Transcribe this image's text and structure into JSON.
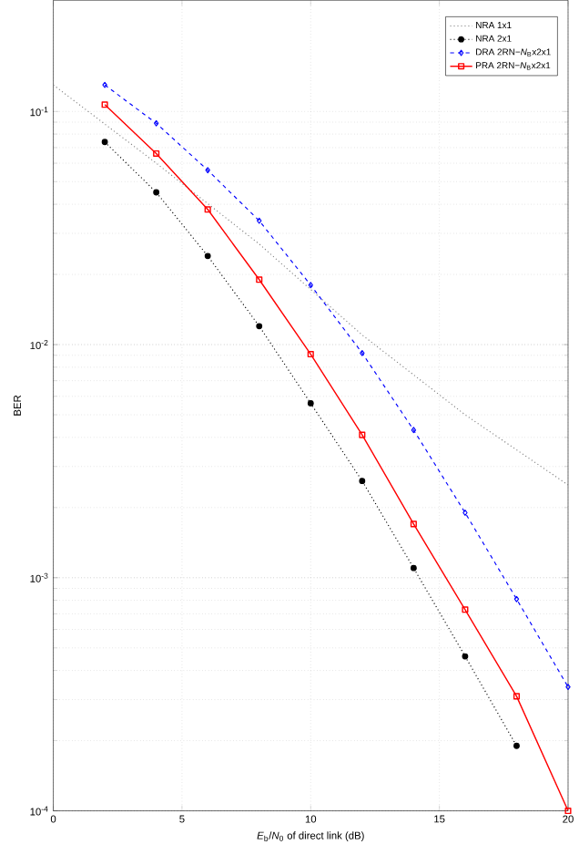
{
  "chart_data": {
    "type": "line",
    "xlabel": "*E*$_{b}$/*N*$_{0}$ of direct link (dB)",
    "ylabel": "BER",
    "log": "y",
    "grid": true,
    "legend": "top right",
    "xlim": [
      0,
      20
    ],
    "xticks": [
      0,
      5,
      10,
      15,
      20
    ],
    "ylim": [
      0.0001,
      0.3
    ],
    "yticks": [
      {
        "value": 0.0001,
        "label": "10$^{-4}$"
      },
      {
        "value": 0.001,
        "label": "10$^{-3}$"
      },
      {
        "value": 0.01,
        "label": "10$^{-2}$"
      },
      {
        "value": 0.1,
        "label": "10$^{-1}$"
      }
    ],
    "series": [
      {
        "name": "NRA 1x1",
        "color": "#808080",
        "marker": "none",
        "line_style": "dotted",
        "x": [
          0,
          4,
          8,
          12,
          16,
          20
        ],
        "values": [
          0.13,
          0.06,
          0.027,
          0.011,
          0.005,
          0.0025
        ]
      },
      {
        "name": "NRA 2x1",
        "color": "#000000",
        "marker": "circle",
        "line_style": "dotted",
        "x": [
          2,
          4,
          6,
          8,
          10,
          12,
          14,
          16,
          18
        ],
        "values": [
          0.074,
          0.045,
          0.024,
          0.012,
          0.0056,
          0.0026,
          0.0011,
          0.00046,
          0.00019
        ]
      },
      {
        "name": "DRA 2RN−*N*$_{B}$x2x1",
        "color": "#0000ff",
        "marker": "diamond",
        "line_style": "dashed",
        "x": [
          2,
          4,
          6,
          8,
          10,
          12,
          14,
          16,
          18,
          20
        ],
        "values": [
          0.13,
          0.089,
          0.056,
          0.034,
          0.018,
          0.0092,
          0.0043,
          0.0019,
          0.00081,
          0.00034
        ]
      },
      {
        "name": "PRA 2RN−*N*$_{B}$x2x1",
        "color": "#ff0000",
        "marker": "square",
        "line_style": "solid",
        "x": [
          2,
          4,
          6,
          8,
          10,
          12,
          14,
          16,
          18,
          20
        ],
        "values": [
          0.107,
          0.066,
          0.038,
          0.019,
          0.0091,
          0.0041,
          0.0017,
          0.00073,
          0.00031,
          0.0001
        ]
      }
    ]
  }
}
